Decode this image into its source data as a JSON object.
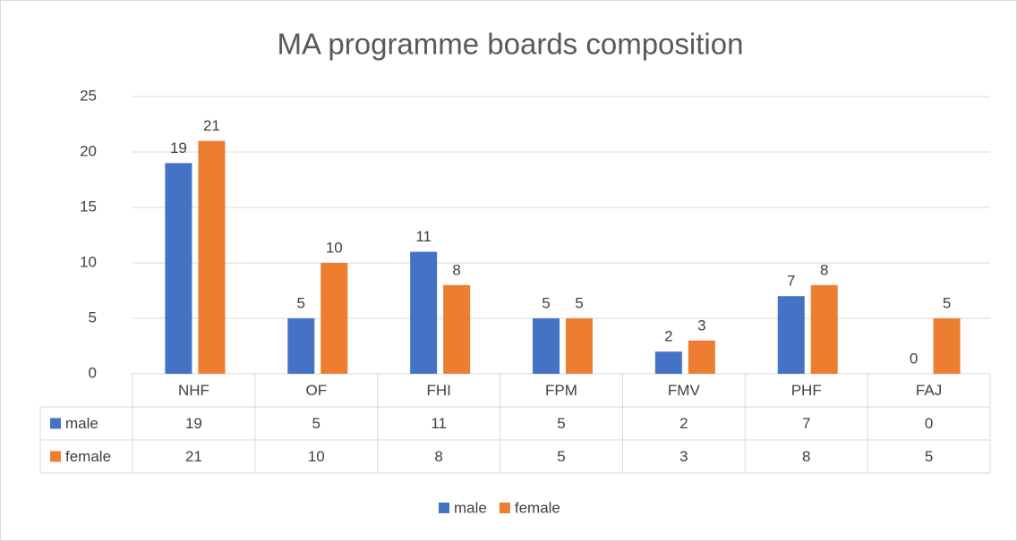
{
  "chart_data": {
    "type": "bar",
    "title": "MA programme boards composition",
    "categories": [
      "NHF",
      "OF",
      "FHI",
      "FPM",
      "FMV",
      "PHF",
      "FAJ"
    ],
    "series": [
      {
        "name": "male",
        "color": "#4472c4",
        "values": [
          19,
          5,
          11,
          5,
          2,
          7,
          0
        ]
      },
      {
        "name": "female",
        "color": "#ed7d31",
        "values": [
          21,
          10,
          8,
          5,
          3,
          8,
          5
        ]
      }
    ],
    "ylim": [
      0,
      25
    ],
    "yticks": [
      0,
      5,
      10,
      15,
      20,
      25
    ],
    "grid": true,
    "legend": "bottom"
  }
}
